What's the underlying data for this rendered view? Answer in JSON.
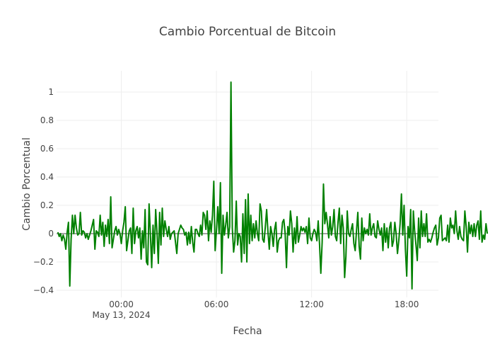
{
  "chart_data": {
    "type": "line",
    "title": "Cambio Porcentual de Bitcoin",
    "xlabel": "Fecha",
    "ylabel": "Cambio Porcentual",
    "grid": true,
    "legend": "none",
    "colors": {
      "series": "#008000",
      "zero_line": "#444444",
      "grid": "#eeeeee"
    },
    "xlim": [
      "2024-05-12 19:55",
      "2024-05-13 20:00"
    ],
    "ylim": [
      -0.45,
      1.15
    ],
    "yticks": [
      -0.4,
      -0.2,
      0,
      0.2,
      0.4,
      0.6,
      0.8,
      1
    ],
    "yticklabels": [
      "−0.4",
      "−0.2",
      "0",
      "0.2",
      "0.4",
      "0.6",
      "0.8",
      "1"
    ],
    "xticks": [
      {
        "at": "2024-05-13 00:00",
        "label": "00:00",
        "sublabel": "May 13, 2024"
      },
      {
        "at": "2024-05-13 06:00",
        "label": "06:00",
        "sublabel": ""
      },
      {
        "at": "2024-05-13 12:00",
        "label": "12:00",
        "sublabel": ""
      },
      {
        "at": "2024-05-13 18:00",
        "label": "18:00",
        "sublabel": ""
      }
    ],
    "series": [
      {
        "start": "2024-05-12 20:00",
        "interval_minutes": 5,
        "values": [
          0.01,
          -0.02,
          0.0,
          -0.05,
          -0.01,
          -0.04,
          -0.11,
          0.01,
          0.08,
          -0.37,
          -0.04,
          0.13,
          0.0,
          0.13,
          0.04,
          -0.01,
          0.0,
          0.15,
          -0.01,
          0.02,
          0.01,
          -0.03,
          0.0,
          -0.04,
          -0.01,
          0.02,
          0.06,
          0.1,
          -0.11,
          0.02,
          0.01,
          -0.02,
          0.13,
          -0.01,
          0.08,
          -0.09,
          0.06,
          -0.02,
          0.1,
          -0.07,
          0.26,
          -0.1,
          -0.04,
          0.02,
          0.05,
          -0.01,
          0.03,
          0.0,
          -0.07,
          0.02,
          0.08,
          0.19,
          -0.12,
          -0.05,
          0.02,
          0.04,
          -0.14,
          0.18,
          -0.07,
          0.02,
          0.05,
          -0.03,
          0.04,
          -0.18,
          0.02,
          -0.1,
          0.17,
          -0.2,
          -0.22,
          0.21,
          0.0,
          -0.24,
          0.06,
          -0.14,
          0.17,
          0.01,
          -0.21,
          0.15,
          -0.08,
          0.18,
          -0.02,
          0.09,
          0.03,
          -0.02,
          0.05,
          -0.04,
          0.0,
          0.01,
          0.02,
          -0.06,
          -0.14,
          0.0,
          0.03,
          0.06,
          0.04,
          0.03,
          -0.01,
          0.01,
          -0.08,
          0.01,
          -0.07,
          0.05,
          -0.06,
          -0.13,
          0.03,
          0.03,
          0.0,
          -0.02,
          0.06,
          -0.01,
          0.15,
          0.13,
          0.03,
          0.16,
          -0.05,
          0.09,
          0.01,
          0.13,
          0.37,
          -0.12,
          0.02,
          0.19,
          0.0,
          0.36,
          -0.28,
          0.13,
          -0.01,
          0.06,
          0.15,
          -0.03,
          0.05,
          1.07,
          0.04,
          -0.13,
          -0.05,
          0.23,
          -0.08,
          0.0,
          -0.02,
          -0.2,
          0.14,
          -0.14,
          0.24,
          -0.2,
          0.28,
          -0.07,
          0.13,
          -0.05,
          0.07,
          -0.03,
          0.09,
          0.0,
          -0.05,
          0.21,
          0.16,
          -0.04,
          -0.06,
          0.05,
          0.17,
          0.01,
          -0.11,
          0.05,
          0.0,
          -0.09,
          0.03,
          0.08,
          -0.13,
          -0.05,
          -0.03,
          -0.03,
          0.08,
          0.1,
          0.0,
          -0.24,
          0.05,
          -0.01,
          0.16,
          0.07,
          -0.13,
          0.04,
          -0.07,
          0.12,
          -0.06,
          -0.01,
          0.05,
          0.02,
          0.04,
          0.01,
          0.05,
          -0.07,
          0.11,
          -0.03,
          -0.05,
          0.0,
          0.03,
          0.01,
          -0.05,
          0.09,
          -0.07,
          -0.28,
          -0.06,
          0.35,
          0.07,
          0.15,
          0.07,
          -0.03,
          0.12,
          -0.01,
          0.05,
          0.17,
          -0.02,
          -0.05,
          0.08,
          0.18,
          -0.07,
          0.13,
          0.04,
          -0.31,
          -0.16,
          0.16,
          0.0,
          -0.02,
          0.03,
          0.07,
          -0.07,
          -0.12,
          0.02,
          0.15,
          -0.09,
          -0.18,
          0.11,
          -0.05,
          0.04,
          0.0,
          0.03,
          -0.01,
          0.14,
          -0.01,
          0.04,
          0.07,
          -0.02,
          -0.03,
          0.09,
          0.03,
          -0.01,
          0.04,
          -0.12,
          0.07,
          -0.06,
          0.04,
          -0.1,
          0.04,
          0.08,
          -0.09,
          -0.05,
          0.08,
          0.0,
          -0.14,
          -0.05,
          0.07,
          0.28,
          -0.01,
          0.2,
          -0.11,
          -0.3,
          0.05,
          -0.03,
          0.17,
          -0.39,
          0.16,
          0.02,
          -0.08,
          -0.19,
          0.11,
          -0.1,
          0.16,
          -0.02,
          0.07,
          -0.02,
          0.14,
          -0.06,
          -0.04,
          -0.06,
          -0.03,
          0.01,
          0.04,
          0.06,
          -0.08,
          -0.03,
          0.11,
          0.13,
          -0.05,
          -0.04,
          -0.03,
          -0.05,
          0.06,
          -0.06,
          0.11,
          0.04,
          0.06,
          0.0,
          0.16,
          0.02,
          -0.04,
          0.05,
          -0.02,
          -0.04,
          -0.05,
          0.16,
          0.05,
          -0.13,
          0.08,
          0.0,
          0.06,
          -0.02,
          0.07,
          -0.02,
          0.06,
          0.09,
          -0.04,
          0.16,
          -0.06,
          -0.01,
          -0.04,
          0.07,
          0.0
        ]
      }
    ]
  }
}
